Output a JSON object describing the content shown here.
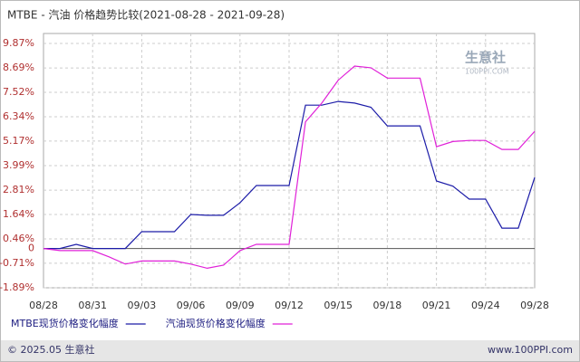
{
  "chart_data": {
    "type": "line",
    "title": "MTBE - 汽油 价格趋势比较(2021-08-28 - 2021-09-28)",
    "categories": [
      "08/28",
      null,
      null,
      "08/31",
      null,
      null,
      "09/03",
      null,
      null,
      "09/06",
      null,
      null,
      "09/09",
      null,
      null,
      "09/12",
      null,
      null,
      "09/15",
      null,
      null,
      "09/18",
      null,
      null,
      "09/21",
      null,
      null,
      "09/24",
      null,
      null,
      "09/28"
    ],
    "series": [
      {
        "name": "MTBE现货价格变化幅度",
        "color": "#1c1ca8",
        "values": [
          0,
          0,
          0.2,
          0,
          0,
          0,
          0.81,
          0.81,
          0.81,
          1.64,
          1.6,
          1.6,
          2.2,
          3.03,
          3.03,
          3.03,
          6.9,
          6.9,
          7.08,
          7.0,
          6.8,
          5.9,
          5.9,
          5.9,
          3.25,
          3.0,
          2.38,
          2.38,
          0.98,
          0.98,
          3.42
        ]
      },
      {
        "name": "汽油现货价格变化幅度",
        "color": "#e020d8",
        "values": [
          0,
          -0.1,
          -0.1,
          -0.1,
          -0.4,
          -0.75,
          -0.6,
          -0.6,
          -0.6,
          -0.75,
          -0.95,
          -0.8,
          -0.1,
          0.2,
          0.2,
          0.2,
          6.1,
          7.0,
          8.1,
          8.78,
          8.7,
          8.2,
          8.2,
          8.2,
          4.9,
          5.15,
          5.2,
          5.2,
          4.77,
          4.77,
          5.64
        ]
      }
    ],
    "ylim": [
      -1.89,
      9.87
    ],
    "yticks": [
      {
        "value": 9.87,
        "label": "9.87%"
      },
      {
        "value": 8.69,
        "label": "8.69%"
      },
      {
        "value": 7.52,
        "label": "7.52%"
      },
      {
        "value": 6.34,
        "label": "6.34%"
      },
      {
        "value": 5.17,
        "label": "5.17%"
      },
      {
        "value": 3.99,
        "label": "3.99%"
      },
      {
        "value": 2.81,
        "label": "2.81%"
      },
      {
        "value": 1.64,
        "label": "1.64%"
      },
      {
        "value": 0.46,
        "label": "0.46%"
      },
      0,
      {
        "value": -0.71,
        "label": "-0.71%"
      },
      {
        "value": -1.89,
        "label": "-1.89%"
      }
    ],
    "grid": true,
    "watermark": {
      "name": "生意社",
      "site": "100PPI.COM"
    },
    "footer": {
      "copyright": "© 2025.05 生意社",
      "site": "www.100PPI.com"
    }
  }
}
